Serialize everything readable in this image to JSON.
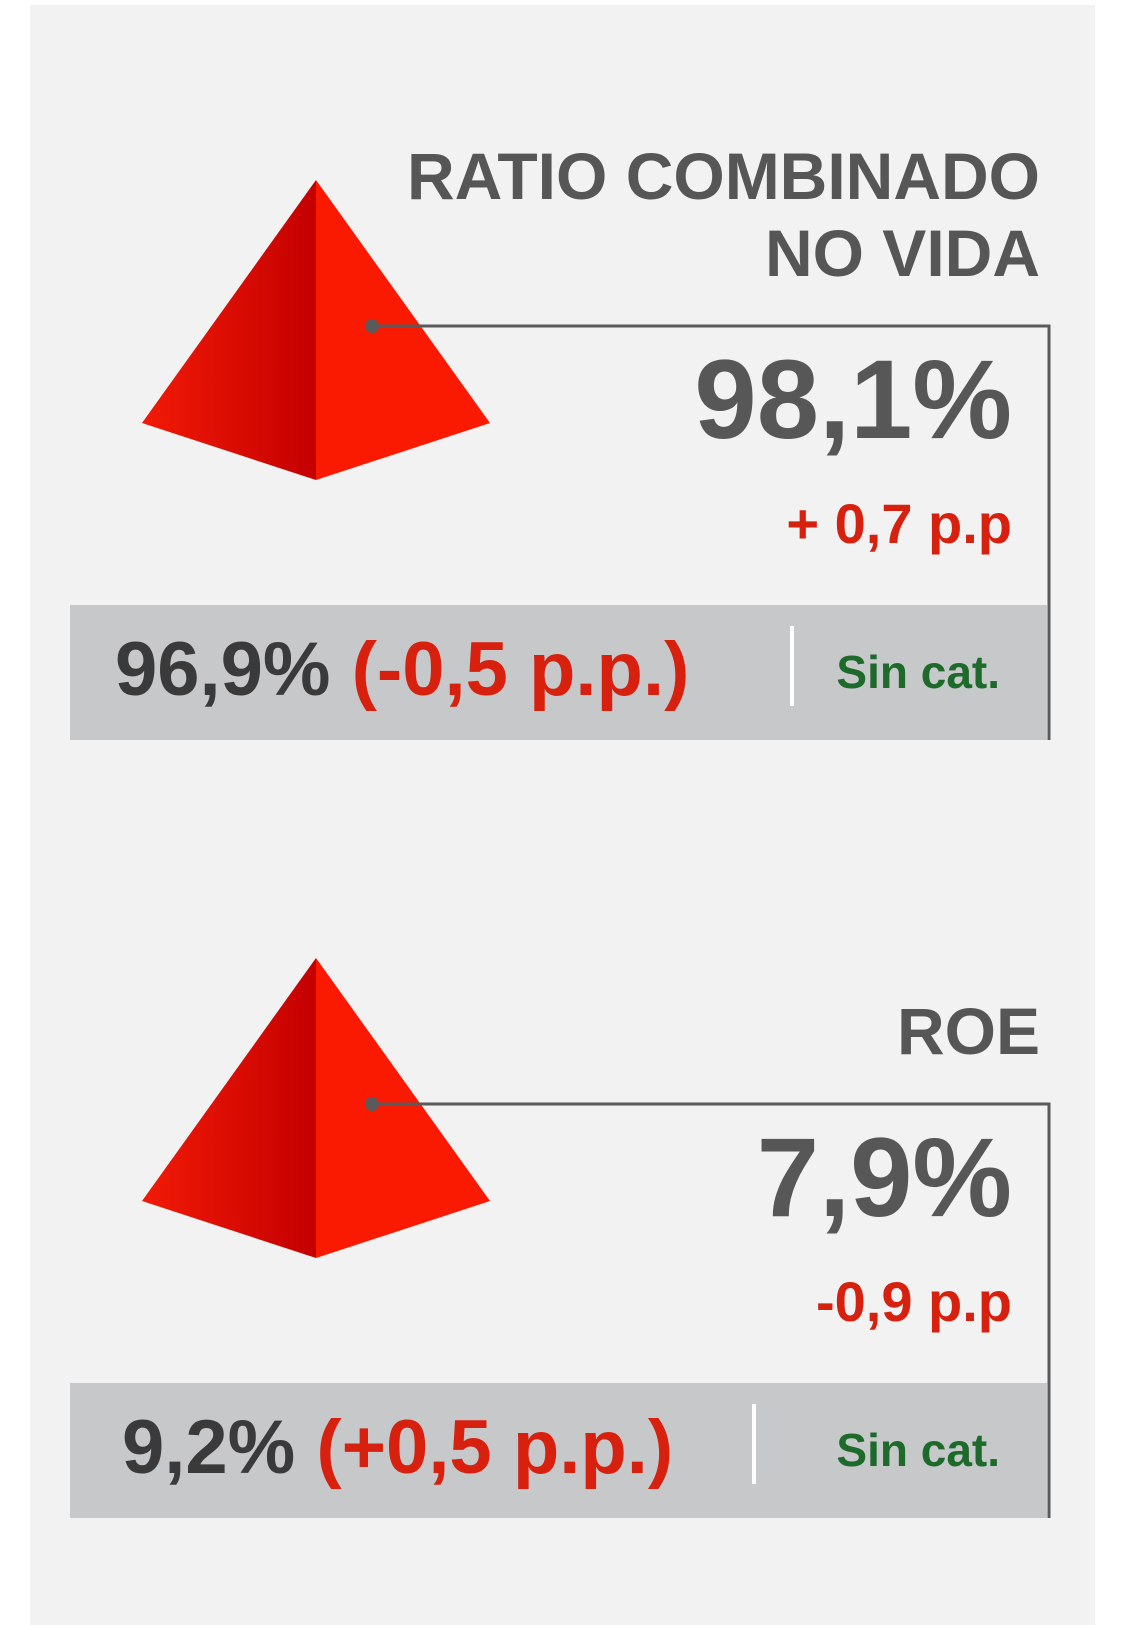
{
  "cards": [
    {
      "title_lines": [
        "RATIO COMBINADO",
        "NO VIDA"
      ],
      "value": "98,1%",
      "change": "+ 0,7 p.p",
      "comparison": {
        "value": "96,9%",
        "change": "(-0,5 p.p.)",
        "rating": "Sin cat."
      }
    },
    {
      "title_lines": [
        "ROE"
      ],
      "value": "7,9%",
      "change": "-0,9 p.p",
      "comparison": {
        "value": "9,2%",
        "change": "(+0,5 p.p.)",
        "rating": "Sin cat."
      }
    }
  ]
}
